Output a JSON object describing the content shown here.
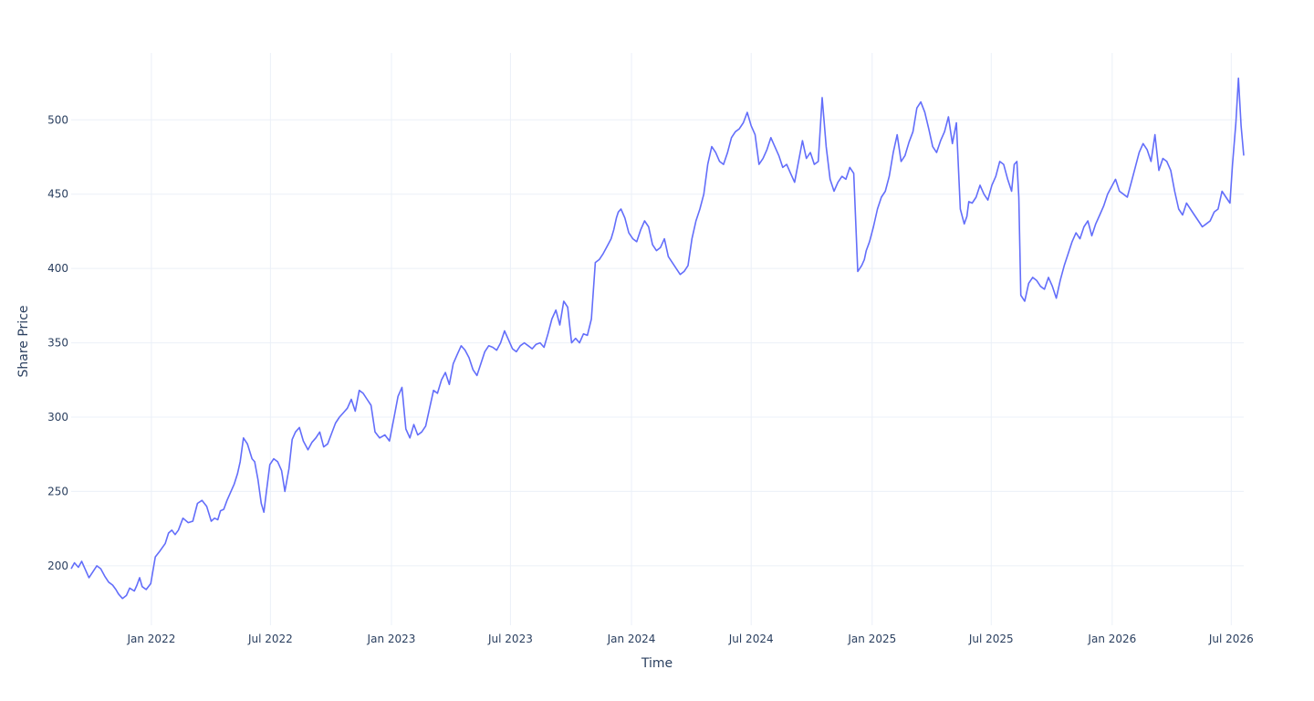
{
  "chart_data": {
    "type": "line",
    "title": "",
    "xlabel": "Time",
    "ylabel": "Share Price",
    "x_range": [
      "2021-09-01",
      "2026-07-20"
    ],
    "ylim": [
      160,
      545
    ],
    "x_ticks": [
      {
        "date": "2022-01-01",
        "label": "Jan 2022"
      },
      {
        "date": "2022-07-01",
        "label": "Jul 2022"
      },
      {
        "date": "2023-01-01",
        "label": "Jan 2023"
      },
      {
        "date": "2023-07-01",
        "label": "Jul 2023"
      },
      {
        "date": "2024-01-01",
        "label": "Jan 2024"
      },
      {
        "date": "2024-07-01",
        "label": "Jul 2024"
      },
      {
        "date": "2025-01-01",
        "label": "Jan 2025"
      },
      {
        "date": "2025-07-01",
        "label": "Jul 2025"
      },
      {
        "date": "2026-01-01",
        "label": "Jan 2026"
      },
      {
        "date": "2026-07-01",
        "label": "Jul 2026"
      }
    ],
    "y_ticks": [
      200,
      250,
      300,
      350,
      400,
      450,
      500
    ],
    "grid": true,
    "legend": "none",
    "series": [
      {
        "color": "#636efa",
        "x": [
          "2021-09-01",
          "2021-09-06",
          "2021-09-12",
          "2021-09-17",
          "2021-09-22",
          "2021-09-28",
          "2021-10-04",
          "2021-10-10",
          "2021-10-16",
          "2021-10-22",
          "2021-10-28",
          "2021-11-03",
          "2021-11-08",
          "2021-11-12",
          "2021-11-18",
          "2021-11-24",
          "2021-11-29",
          "2021-12-06",
          "2021-12-10",
          "2021-12-14",
          "2021-12-18",
          "2021-12-24",
          "2021-12-31",
          "2022-01-07",
          "2022-01-14",
          "2022-01-22",
          "2022-01-27",
          "2022-02-01",
          "2022-02-06",
          "2022-02-11",
          "2022-02-18",
          "2022-02-26",
          "2022-03-05",
          "2022-03-12",
          "2022-03-19",
          "2022-03-26",
          "2022-04-02",
          "2022-04-07",
          "2022-04-12",
          "2022-04-16",
          "2022-04-21",
          "2022-04-26",
          "2022-05-02",
          "2022-05-07",
          "2022-05-12",
          "2022-05-16",
          "2022-05-21",
          "2022-05-27",
          "2022-06-03",
          "2022-06-07",
          "2022-06-12",
          "2022-06-17",
          "2022-06-21",
          "2022-06-25",
          "2022-06-30",
          "2022-07-06",
          "2022-07-12",
          "2022-07-18",
          "2022-07-23",
          "2022-07-29",
          "2022-08-03",
          "2022-08-08",
          "2022-08-14",
          "2022-08-20",
          "2022-08-27",
          "2022-09-02",
          "2022-09-08",
          "2022-09-14",
          "2022-09-20",
          "2022-09-26",
          "2022-10-02",
          "2022-10-08",
          "2022-10-14",
          "2022-10-20",
          "2022-10-26",
          "2022-11-01",
          "2022-11-07",
          "2022-11-13",
          "2022-11-19",
          "2022-11-25",
          "2022-12-01",
          "2022-12-07",
          "2022-12-14",
          "2022-12-22",
          "2022-12-29",
          "2023-01-05",
          "2023-01-11",
          "2023-01-17",
          "2023-01-23",
          "2023-01-29",
          "2023-02-04",
          "2023-02-10",
          "2023-02-16",
          "2023-02-22",
          "2023-02-28",
          "2023-03-06",
          "2023-03-12",
          "2023-03-18",
          "2023-03-24",
          "2023-03-30",
          "2023-04-05",
          "2023-04-11",
          "2023-04-17",
          "2023-04-23",
          "2023-04-29",
          "2023-05-05",
          "2023-05-11",
          "2023-05-17",
          "2023-05-23",
          "2023-05-29",
          "2023-06-04",
          "2023-06-10",
          "2023-06-16",
          "2023-06-22",
          "2023-06-28",
          "2023-07-04",
          "2023-07-10",
          "2023-07-16",
          "2023-07-22",
          "2023-07-28",
          "2023-08-03",
          "2023-08-09",
          "2023-08-15",
          "2023-08-21",
          "2023-08-27",
          "2023-09-02",
          "2023-09-08",
          "2023-09-14",
          "2023-09-20",
          "2023-09-26",
          "2023-10-02",
          "2023-10-08",
          "2023-10-14",
          "2023-10-20",
          "2023-10-26",
          "2023-11-01",
          "2023-11-07",
          "2023-11-13",
          "2023-11-19",
          "2023-11-25",
          "2023-12-01",
          "2023-12-05",
          "2023-12-09",
          "2023-12-12",
          "2023-12-16",
          "2023-12-22",
          "2023-12-28",
          "2024-01-03",
          "2024-01-09",
          "2024-01-15",
          "2024-01-21",
          "2024-01-27",
          "2024-02-02",
          "2024-02-08",
          "2024-02-14",
          "2024-02-20",
          "2024-02-26",
          "2024-03-03",
          "2024-03-09",
          "2024-03-15",
          "2024-03-21",
          "2024-03-27",
          "2024-04-02",
          "2024-04-08",
          "2024-04-14",
          "2024-04-20",
          "2024-04-26",
          "2024-05-02",
          "2024-05-08",
          "2024-05-14",
          "2024-05-20",
          "2024-05-26",
          "2024-06-01",
          "2024-06-07",
          "2024-06-13",
          "2024-06-19",
          "2024-06-25",
          "2024-07-01",
          "2024-07-07",
          "2024-07-13",
          "2024-07-19",
          "2024-07-25",
          "2024-07-31",
          "2024-08-06",
          "2024-08-12",
          "2024-08-18",
          "2024-08-24",
          "2024-08-30",
          "2024-09-05",
          "2024-09-11",
          "2024-09-17",
          "2024-09-23",
          "2024-09-29",
          "2024-10-05",
          "2024-10-11",
          "2024-10-17",
          "2024-10-23",
          "2024-10-29",
          "2024-11-04",
          "2024-11-10",
          "2024-11-16",
          "2024-11-22",
          "2024-11-28",
          "2024-12-04",
          "2024-12-10",
          "2024-12-16",
          "2024-12-20",
          "2024-12-23",
          "2024-12-28",
          "2025-01-03",
          "2025-01-09",
          "2025-01-15",
          "2025-01-21",
          "2025-01-27",
          "2025-02-02",
          "2025-02-08",
          "2025-02-14",
          "2025-02-20",
          "2025-02-26",
          "2025-03-04",
          "2025-03-10",
          "2025-03-16",
          "2025-03-22",
          "2025-03-28",
          "2025-04-03",
          "2025-04-09",
          "2025-04-15",
          "2025-04-21",
          "2025-04-27",
          "2025-05-03",
          "2025-05-09",
          "2025-05-15",
          "2025-05-21",
          "2025-05-25",
          "2025-05-28",
          "2025-06-02",
          "2025-06-08",
          "2025-06-14",
          "2025-06-20",
          "2025-06-26",
          "2025-07-02",
          "2025-07-08",
          "2025-07-14",
          "2025-07-20",
          "2025-07-26",
          "2025-08-01",
          "2025-08-05",
          "2025-08-09",
          "2025-08-12",
          "2025-08-15",
          "2025-08-21",
          "2025-08-27",
          "2025-09-02",
          "2025-09-08",
          "2025-09-14",
          "2025-09-20",
          "2025-09-26",
          "2025-10-02",
          "2025-10-08",
          "2025-10-14",
          "2025-10-20",
          "2025-10-26",
          "2025-11-01",
          "2025-11-07",
          "2025-11-13",
          "2025-11-19",
          "2025-11-25",
          "2025-12-01",
          "2025-12-07",
          "2025-12-13",
          "2025-12-19",
          "2025-12-25",
          "2025-12-31",
          "2026-01-06",
          "2026-01-12",
          "2026-01-18",
          "2026-01-24",
          "2026-01-30",
          "2026-02-05",
          "2026-02-11",
          "2026-02-17",
          "2026-02-23",
          "2026-03-01",
          "2026-03-07",
          "2026-03-13",
          "2026-03-19",
          "2026-03-25",
          "2026-03-31",
          "2026-04-06",
          "2026-04-12",
          "2026-04-18",
          "2026-04-24",
          "2026-04-30",
          "2026-05-06",
          "2026-05-12",
          "2026-05-18",
          "2026-05-24",
          "2026-05-30",
          "2026-06-05",
          "2026-06-11",
          "2026-06-17",
          "2026-06-23",
          "2026-06-29",
          "2026-07-03",
          "2026-07-08",
          "2026-07-12",
          "2026-07-16",
          "2026-07-20"
        ],
        "y": [
          198,
          202,
          199,
          203,
          198,
          192,
          196,
          200,
          198,
          193,
          189,
          187,
          184,
          181,
          178,
          180,
          185,
          183,
          187,
          192,
          186,
          184,
          188,
          206,
          210,
          215,
          222,
          224,
          221,
          224,
          232,
          229,
          230,
          242,
          244,
          240,
          230,
          232,
          231,
          237,
          238,
          244,
          250,
          255,
          262,
          270,
          286,
          282,
          272,
          270,
          258,
          242,
          236,
          250,
          268,
          272,
          270,
          264,
          250,
          265,
          285,
          290,
          293,
          284,
          278,
          283,
          286,
          290,
          280,
          282,
          289,
          296,
          300,
          303,
          306,
          312,
          304,
          318,
          316,
          312,
          308,
          290,
          286,
          288,
          284,
          300,
          314,
          320,
          292,
          286,
          295,
          288,
          290,
          294,
          306,
          318,
          316,
          325,
          330,
          322,
          336,
          342,
          348,
          345,
          340,
          332,
          328,
          336,
          344,
          348,
          347,
          345,
          350,
          358,
          352,
          346,
          344,
          348,
          350,
          348,
          346,
          349,
          350,
          347,
          356,
          366,
          372,
          362,
          378,
          374,
          350,
          353,
          350,
          356,
          355,
          366,
          404,
          406,
          410,
          415,
          420,
          426,
          434,
          438,
          440,
          434,
          424,
          420,
          418,
          426,
          432,
          428,
          416,
          412,
          414,
          420,
          408,
          404,
          400,
          396,
          398,
          402,
          420,
          432,
          440,
          450,
          470,
          482,
          478,
          472,
          470,
          478,
          488,
          492,
          494,
          498,
          505,
          496,
          490,
          470,
          474,
          480,
          488,
          482,
          476,
          468,
          470,
          464,
          458,
          472,
          486,
          474,
          478,
          470,
          472,
          515,
          482,
          460,
          452,
          458,
          462,
          460,
          468,
          464,
          398,
          402,
          406,
          412,
          418,
          428,
          440,
          448,
          452,
          462,
          478,
          490,
          472,
          476,
          485,
          492,
          508,
          512,
          505,
          494,
          482,
          478,
          486,
          492,
          502,
          484,
          498,
          440,
          430,
          435,
          445,
          444,
          448,
          456,
          450,
          446,
          456,
          462,
          472,
          470,
          460,
          452,
          470,
          472,
          448,
          382,
          378,
          390,
          394,
          392,
          388,
          386,
          394,
          388,
          380,
          392,
          402,
          410,
          418,
          424,
          420,
          428,
          432,
          422,
          430,
          436,
          442,
          450,
          455,
          460,
          452,
          450,
          448,
          458,
          468,
          478,
          484,
          480,
          472,
          490,
          466,
          474,
          472,
          466,
          452,
          440,
          436,
          444,
          440,
          436,
          432,
          428,
          430,
          432,
          438,
          440,
          452,
          448,
          444,
          470,
          498,
          528,
          496,
          476
        ]
      }
    ]
  }
}
